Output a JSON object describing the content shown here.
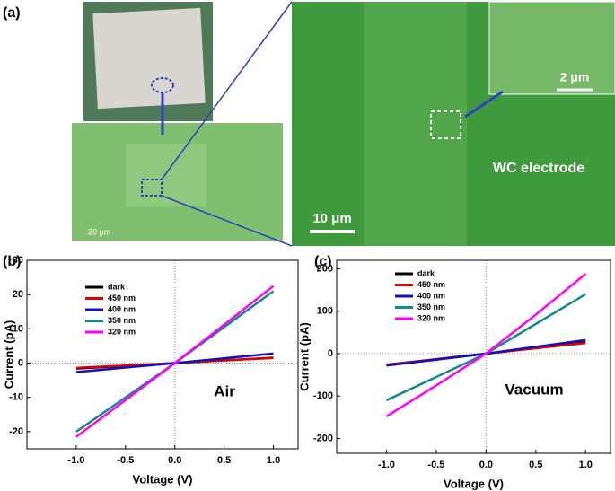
{
  "panel_a": {
    "label": "(a)",
    "inset_scale": "2 μm",
    "electrode_label": "WC electrode",
    "sem_scale": "10 μm",
    "optical_scale": "20 μm"
  },
  "chart_data": [
    {
      "type": "line",
      "panel": "(b)",
      "annotation": "Air",
      "xlabel": "Voltage (V)",
      "ylabel": "Current (pA)",
      "x": [
        -1,
        -0.5,
        0,
        0.5,
        1
      ],
      "series": [
        {
          "name": "dark",
          "color": "#000000",
          "values": [
            -1.6,
            -0.8,
            0,
            0.8,
            1.6
          ]
        },
        {
          "name": "450 nm",
          "color": "#e00000",
          "values": [
            -1.4,
            -0.7,
            0,
            0.8,
            1.5
          ]
        },
        {
          "name": "400 nm",
          "color": "#1010c0",
          "values": [
            -2.6,
            -1.3,
            0,
            1.4,
            2.8
          ]
        },
        {
          "name": "350 nm",
          "color": "#138a8a",
          "values": [
            -20,
            -10,
            0,
            10.5,
            21
          ]
        },
        {
          "name": "320 nm",
          "color": "#ff00ff",
          "values": [
            -21.5,
            -10.8,
            0,
            11.2,
            22.5
          ]
        }
      ],
      "xlim": [
        -1.5,
        1.25
      ],
      "ylim": [
        -25,
        30
      ],
      "xticks": [
        {
          "value": -1,
          "label": "-1.0"
        },
        {
          "value": -0.5,
          "label": "-0.5"
        },
        {
          "value": 0,
          "label": "0.0"
        },
        {
          "value": 0.5,
          "label": "0.5"
        },
        {
          "value": 1,
          "label": "1.0"
        }
      ],
      "yticks": [
        -20,
        -10,
        0,
        10,
        20,
        30
      ],
      "legend": "upper left"
    },
    {
      "type": "line",
      "panel": "(c)",
      "annotation": "Vacuum",
      "xlabel": "Voltage (V)",
      "ylabel": "Current (pA)",
      "x": [
        -1,
        -0.5,
        0,
        0.5,
        1
      ],
      "series": [
        {
          "name": "dark",
          "color": "#000000",
          "values": [
            -28,
            -14,
            0,
            14,
            28
          ]
        },
        {
          "name": "450 nm",
          "color": "#e00000",
          "values": [
            -26,
            -13,
            0,
            12.5,
            25
          ]
        },
        {
          "name": "400 nm",
          "color": "#1010c0",
          "values": [
            -28,
            -14,
            0,
            16,
            32
          ]
        },
        {
          "name": "350 nm",
          "color": "#138a8a",
          "values": [
            -110,
            -55,
            0,
            70,
            140
          ]
        },
        {
          "name": "320 nm",
          "color": "#ff00ff",
          "values": [
            -148,
            -75,
            0,
            92,
            188
          ]
        }
      ],
      "xlim": [
        -1.5,
        1.25
      ],
      "ylim": [
        -235,
        220
      ],
      "xticks": [
        {
          "value": -1,
          "label": "-1.0"
        },
        {
          "value": -0.5,
          "label": "-0.5"
        },
        {
          "value": 0,
          "label": "0.0"
        },
        {
          "value": 0.5,
          "label": "0.5"
        },
        {
          "value": 1,
          "label": "1.0"
        }
      ],
      "yticks": [
        -200,
        -100,
        0,
        100,
        200
      ],
      "legend": "upper left"
    }
  ]
}
